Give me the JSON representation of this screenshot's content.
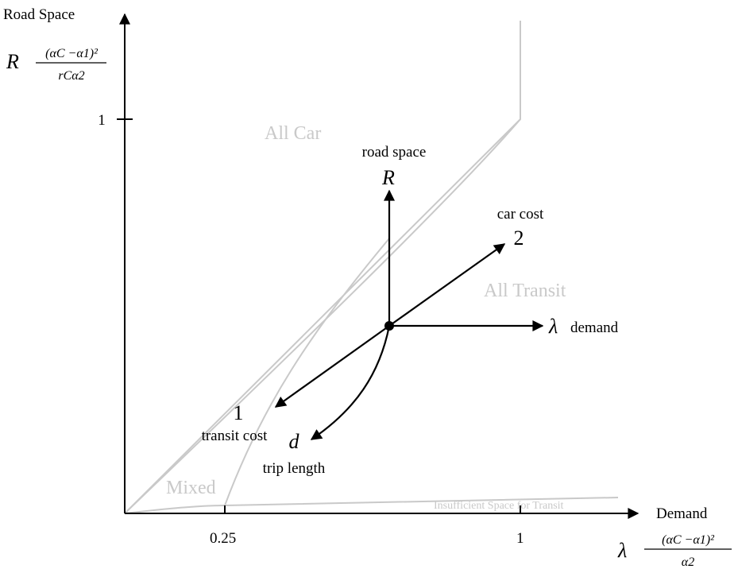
{
  "y_axis": {
    "title": "Road Space",
    "symbol": "R",
    "frac_num": "(αC −α1)²",
    "frac_den": "rCα2",
    "tick_label": "1"
  },
  "x_axis": {
    "title": "Demand",
    "symbol": "λ",
    "frac_num": "(αC −α1)²",
    "frac_den": "α2",
    "tick_labels": [
      "0.25",
      "1"
    ]
  },
  "regions": {
    "all_car": "All Car",
    "all_transit": "All Transit",
    "mixed": "Mixed",
    "insufficient": "Insufficient Space for Transit"
  },
  "vectors": {
    "road_space_caption": "road space",
    "road_space_symbol": "R",
    "car_cost_caption": "car cost",
    "car_cost_number": "2",
    "demand_symbol": "λ",
    "demand_caption": "demand",
    "transit_number": "1",
    "transit_caption": "transit cost",
    "trip_symbol": "d",
    "trip_caption": "trip length"
  },
  "colors": {
    "region_lines": "#c9c9c9",
    "axes": "#000000"
  }
}
